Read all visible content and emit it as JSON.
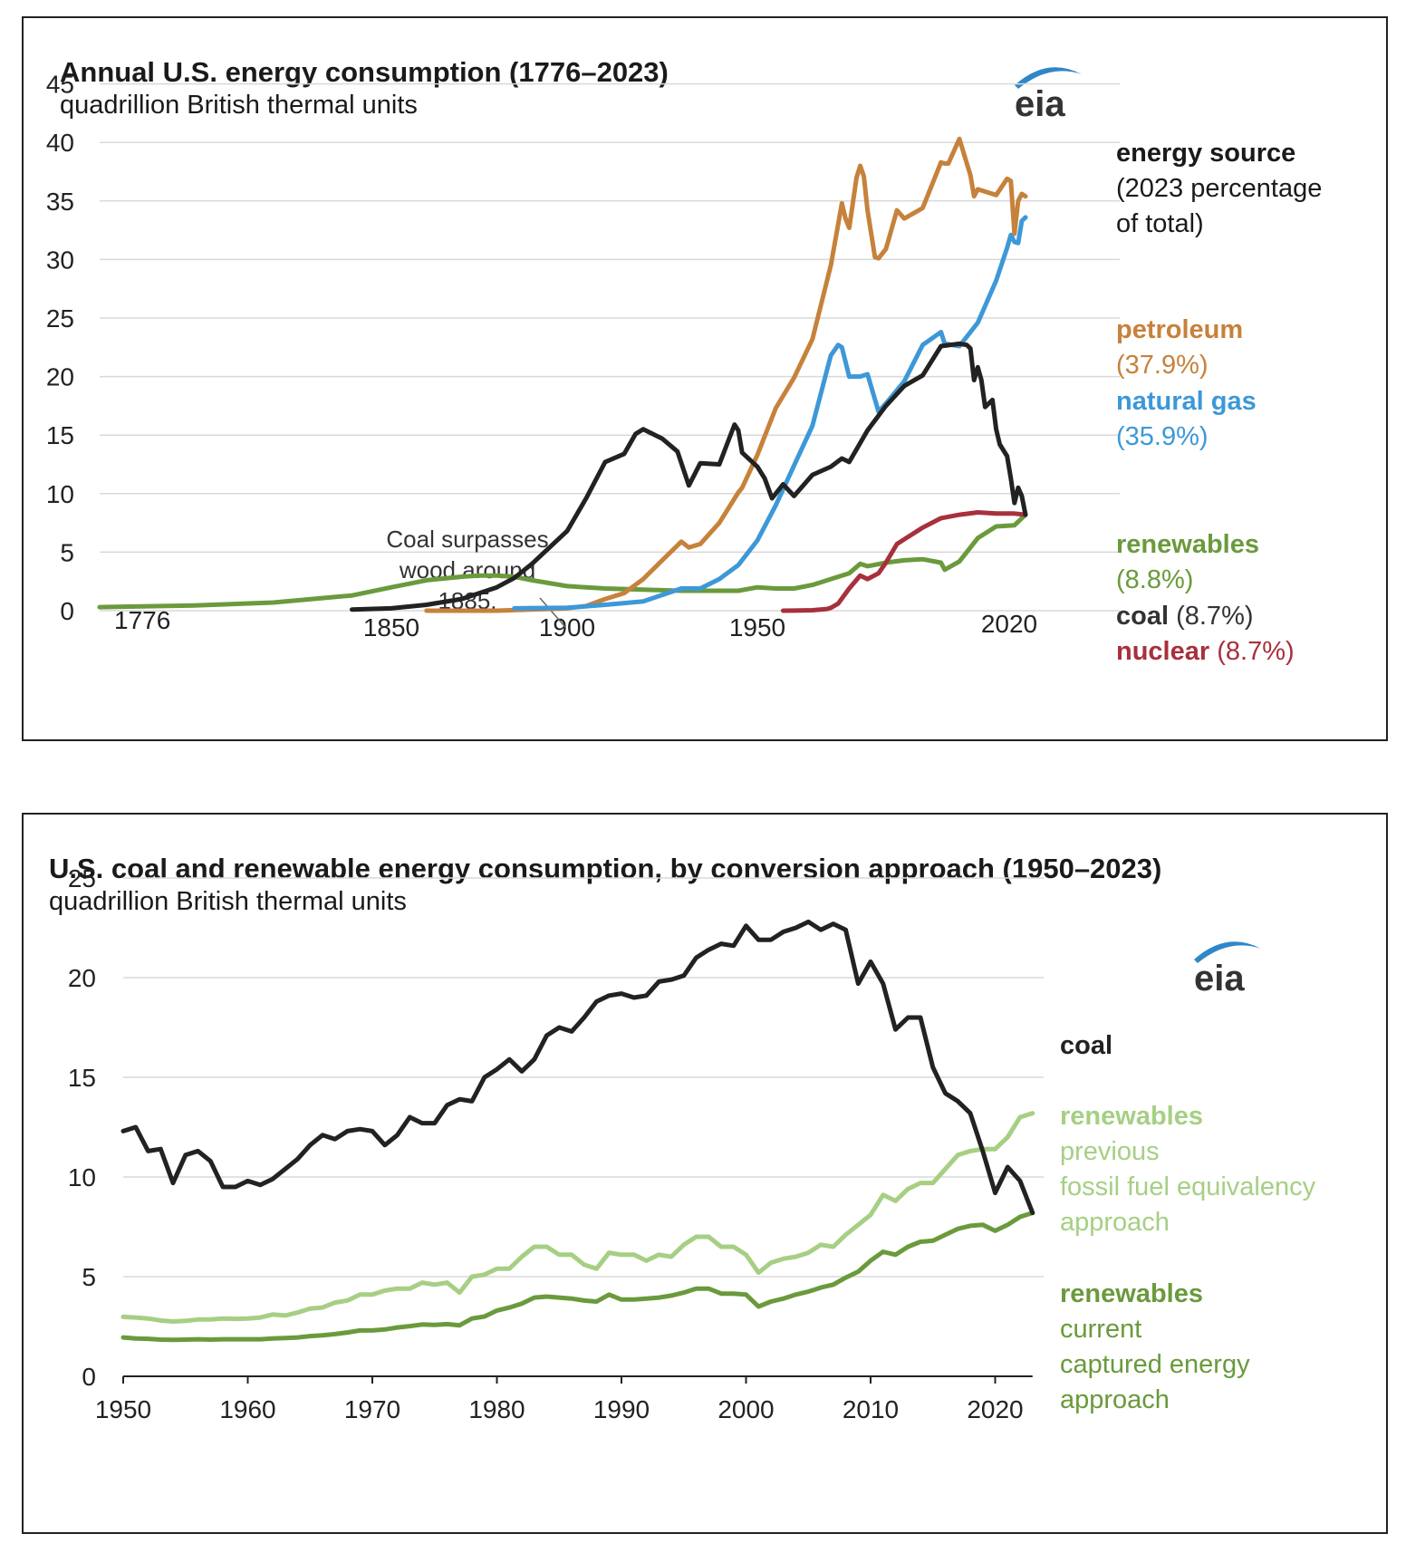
{
  "colors": {
    "petroleum": "#c6823b",
    "natural_gas": "#3d98d8",
    "coal": "#222222",
    "renewables": "#6a9a3c",
    "nuclear": "#a8303c",
    "renewables_light": "#a6cf84",
    "grid": "#d9d9d9"
  },
  "chart_data": [
    {
      "type": "line",
      "title": "Annual U.S. energy consumption (1776–2023)",
      "subtitle": "quadrillion British thermal units",
      "logo": "eia",
      "ylim": [
        0,
        45
      ],
      "yticks": [
        "0",
        "5",
        "10",
        "15",
        "20",
        "25",
        "30",
        "35",
        "40",
        "45"
      ],
      "xlabels": [
        "1776",
        "1850",
        "1900",
        "1950",
        "2020"
      ],
      "legend_title": "energy source",
      "legend_subtitle": [
        "(2023 percentage",
        "of total)"
      ],
      "annotation": [
        "Coal surpasses",
        "wood around",
        "1885."
      ],
      "series": [
        {
          "name": "petroleum",
          "label": "petroleum",
          "pct": "(37.9%)",
          "x": [
            1860,
            1880,
            1900,
            1905,
            1910,
            1915,
            1920,
            1925,
            1930,
            1932,
            1935,
            1940,
            1945,
            1946,
            1950,
            1955,
            1960,
            1965,
            1970,
            1972,
            1973,
            1974,
            1975,
            1977,
            1978,
            1979,
            1980,
            1982,
            1983,
            1985,
            1988,
            1990,
            1995,
            2000,
            2001,
            2002,
            2005,
            2008,
            2009,
            2010,
            2015,
            2018,
            2019,
            2020,
            2021,
            2022,
            2023
          ],
          "y": [
            0,
            0,
            0.2,
            0.4,
            1,
            1.5,
            2.7,
            4.3,
            5.9,
            5.4,
            5.7,
            7.5,
            10.1,
            10.5,
            13.3,
            17.3,
            19.9,
            23.2,
            29.5,
            33,
            34.8,
            33.5,
            32.7,
            37,
            38,
            37.1,
            34.2,
            30.2,
            30.1,
            30.9,
            34.2,
            33.5,
            34.4,
            38.3,
            38.2,
            38.2,
            40.3,
            37.2,
            35.4,
            36,
            35.5,
            36.9,
            36.7,
            32.2,
            35,
            35.6,
            35.4
          ]
        },
        {
          "name": "natural_gas",
          "label": "natural gas",
          "pct": "(35.9%)",
          "x": [
            1885,
            1900,
            1910,
            1920,
            1930,
            1935,
            1940,
            1945,
            1950,
            1955,
            1960,
            1965,
            1970,
            1972,
            1973,
            1975,
            1978,
            1980,
            1983,
            1985,
            1990,
            1995,
            2000,
            2001,
            2005,
            2008,
            2010,
            2015,
            2018,
            2019,
            2020,
            2021,
            2022,
            2023
          ],
          "y": [
            0.2,
            0.25,
            0.5,
            0.8,
            1.9,
            1.9,
            2.7,
            3.9,
            6,
            9,
            12.4,
            15.8,
            21.8,
            22.7,
            22.5,
            20,
            20,
            20.2,
            17,
            17.7,
            19.6,
            22.7,
            23.8,
            22.8,
            22.6,
            23.8,
            24.6,
            28.2,
            31,
            32.1,
            31.5,
            31.4,
            33.3,
            33.6
          ]
        },
        {
          "name": "coal",
          "label": "coal",
          "pct": "(8.7%)",
          "x": [
            1840,
            1850,
            1860,
            1870,
            1880,
            1885,
            1890,
            1900,
            1905,
            1910,
            1915,
            1918,
            1920,
            1925,
            1929,
            1932,
            1935,
            1940,
            1944,
            1945,
            1946,
            1950,
            1952,
            1954,
            1957,
            1960,
            1965,
            1970,
            1973,
            1975,
            1980,
            1985,
            1990,
            1995,
            2000,
            2005,
            2007,
            2008,
            2009,
            2010,
            2011,
            2012,
            2014,
            2015,
            2016,
            2018,
            2019,
            2020,
            2021,
            2022,
            2023
          ],
          "y": [
            0.1,
            0.2,
            0.5,
            1,
            2,
            2.8,
            4,
            6.8,
            9.6,
            12.7,
            13.4,
            15.1,
            15.5,
            14.7,
            13.6,
            10.7,
            12.6,
            12.5,
            15.9,
            15.4,
            13.5,
            12.3,
            11.3,
            9.6,
            10.8,
            9.8,
            11.6,
            12.3,
            13,
            12.7,
            15.4,
            17.5,
            19.2,
            20.1,
            22.6,
            22.8,
            22.7,
            22.4,
            19.7,
            20.8,
            19.7,
            17.4,
            18,
            15.5,
            14.2,
            13.2,
            11.3,
            9.2,
            10.5,
            9.8,
            8.2
          ]
        },
        {
          "name": "renewables",
          "label": "renewables",
          "pct": "(8.8%)",
          "x": [
            1776,
            1800,
            1820,
            1840,
            1850,
            1860,
            1870,
            1875,
            1880,
            1885,
            1890,
            1900,
            1910,
            1920,
            1930,
            1940,
            1945,
            1950,
            1955,
            1960,
            1965,
            1970,
            1975,
            1978,
            1980,
            1985,
            1990,
            1995,
            2000,
            2001,
            2005,
            2010,
            2015,
            2020,
            2023
          ],
          "y": [
            0.3,
            0.45,
            0.7,
            1.3,
            2,
            2.6,
            2.9,
            3.0,
            3.0,
            2.9,
            2.6,
            2.1,
            1.9,
            1.8,
            1.7,
            1.7,
            1.7,
            2,
            1.9,
            1.9,
            2.2,
            2.7,
            3.2,
            4,
            3.8,
            4.1,
            4.3,
            4.4,
            4.1,
            3.5,
            4.2,
            6.2,
            7.2,
            7.3,
            8.2
          ]
        },
        {
          "name": "nuclear",
          "label": "nuclear",
          "pct": "(8.7%)",
          "x": [
            1957,
            1960,
            1965,
            1969,
            1970,
            1972,
            1975,
            1978,
            1980,
            1983,
            1985,
            1988,
            1990,
            1995,
            2000,
            2005,
            2010,
            2015,
            2020,
            2023
          ],
          "y": [
            0,
            0.01,
            0.04,
            0.15,
            0.24,
            0.6,
            1.9,
            3,
            2.7,
            3.2,
            4.1,
            5.7,
            6.1,
            7.1,
            7.9,
            8.2,
            8.4,
            8.3,
            8.3,
            8.2
          ]
        }
      ]
    },
    {
      "type": "line",
      "title": "U.S. coal and renewable energy consumption, by conversion approach (1950–2023)",
      "subtitle": "quadrillion British thermal units",
      "logo": "eia",
      "xlim": [
        1950,
        2023
      ],
      "ylim": [
        0,
        25
      ],
      "yticks": [
        "0",
        "5",
        "10",
        "15",
        "20",
        "25"
      ],
      "xticks": [
        "1950",
        "1960",
        "1970",
        "1980",
        "1990",
        "2000",
        "2010",
        "2020"
      ],
      "series": [
        {
          "name": "coal",
          "label": "coal",
          "sublabel": [],
          "x": [
            1950,
            1951,
            1952,
            1953,
            1954,
            1955,
            1956,
            1957,
            1958,
            1959,
            1960,
            1961,
            1962,
            1963,
            1964,
            1965,
            1966,
            1967,
            1968,
            1969,
            1970,
            1971,
            1972,
            1973,
            1974,
            1975,
            1976,
            1977,
            1978,
            1979,
            1980,
            1981,
            1982,
            1983,
            1984,
            1985,
            1986,
            1987,
            1988,
            1989,
            1990,
            1991,
            1992,
            1993,
            1994,
            1995,
            1996,
            1997,
            1998,
            1999,
            2000,
            2001,
            2002,
            2003,
            2004,
            2005,
            2006,
            2007,
            2008,
            2009,
            2010,
            2011,
            2012,
            2013,
            2014,
            2015,
            2016,
            2017,
            2018,
            2019,
            2020,
            2021,
            2022,
            2023
          ],
          "y": [
            12.3,
            12.5,
            11.3,
            11.4,
            9.7,
            11.1,
            11.3,
            10.8,
            9.5,
            9.5,
            9.8,
            9.6,
            9.9,
            10.4,
            10.9,
            11.6,
            12.1,
            11.9,
            12.3,
            12.4,
            12.3,
            11.6,
            12.1,
            13,
            12.7,
            12.7,
            13.6,
            13.9,
            13.8,
            15,
            15.4,
            15.9,
            15.3,
            15.9,
            17.1,
            17.5,
            17.3,
            18,
            18.8,
            19.1,
            19.2,
            19,
            19.1,
            19.8,
            19.9,
            20.1,
            21,
            21.4,
            21.7,
            21.6,
            22.6,
            21.9,
            21.9,
            22.3,
            22.5,
            22.8,
            22.4,
            22.7,
            22.4,
            19.7,
            20.8,
            19.7,
            17.4,
            18,
            18,
            15.5,
            14.2,
            13.8,
            13.2,
            11.3,
            9.2,
            10.5,
            9.8,
            8.2
          ]
        },
        {
          "name": "renewables_light",
          "label": "renewables",
          "sublabel": [
            "previous",
            "fossil fuel equivalency",
            "approach"
          ],
          "x": [
            1950,
            1951,
            1952,
            1953,
            1954,
            1955,
            1956,
            1957,
            1958,
            1959,
            1960,
            1961,
            1962,
            1963,
            1964,
            1965,
            1966,
            1967,
            1968,
            1969,
            1970,
            1971,
            1972,
            1973,
            1974,
            1975,
            1976,
            1977,
            1978,
            1979,
            1980,
            1981,
            1982,
            1983,
            1984,
            1985,
            1986,
            1987,
            1988,
            1989,
            1990,
            1991,
            1992,
            1993,
            1994,
            1995,
            1996,
            1997,
            1998,
            1999,
            2000,
            2001,
            2002,
            2003,
            2004,
            2005,
            2006,
            2007,
            2008,
            2009,
            2010,
            2011,
            2012,
            2013,
            2014,
            2015,
            2016,
            2017,
            2018,
            2019,
            2020,
            2021,
            2022,
            2023
          ],
          "y": [
            2.98,
            2.95,
            2.9,
            2.8,
            2.75,
            2.78,
            2.85,
            2.85,
            2.9,
            2.88,
            2.9,
            2.95,
            3.1,
            3.05,
            3.2,
            3.4,
            3.45,
            3.7,
            3.8,
            4.1,
            4.1,
            4.3,
            4.4,
            4.4,
            4.7,
            4.6,
            4.7,
            4.2,
            5,
            5.1,
            5.4,
            5.4,
            6,
            6.5,
            6.5,
            6.1,
            6.1,
            5.6,
            5.4,
            6.2,
            6.1,
            6.1,
            5.8,
            6.1,
            6,
            6.6,
            7,
            7,
            6.5,
            6.5,
            6.1,
            5.2,
            5.7,
            5.9,
            6,
            6.2,
            6.6,
            6.5,
            7.1,
            7.6,
            8.1,
            9.1,
            8.8,
            9.4,
            9.7,
            9.7,
            10.4,
            11.1,
            11.3,
            11.4,
            11.4,
            12,
            13,
            13.2
          ]
        },
        {
          "name": "renewables",
          "label": "renewables",
          "sublabel": [
            "current",
            "captured energy",
            "approach"
          ],
          "x": [
            1950,
            1951,
            1952,
            1953,
            1954,
            1955,
            1956,
            1957,
            1958,
            1959,
            1960,
            1961,
            1962,
            1963,
            1964,
            1965,
            1966,
            1967,
            1968,
            1969,
            1970,
            1971,
            1972,
            1973,
            1974,
            1975,
            1976,
            1977,
            1978,
            1979,
            1980,
            1981,
            1982,
            1983,
            1984,
            1985,
            1986,
            1987,
            1988,
            1989,
            1990,
            1991,
            1992,
            1993,
            1994,
            1995,
            1996,
            1997,
            1998,
            1999,
            2000,
            2001,
            2002,
            2003,
            2004,
            2005,
            2006,
            2007,
            2008,
            2009,
            2010,
            2011,
            2012,
            2013,
            2014,
            2015,
            2016,
            2017,
            2018,
            2019,
            2020,
            2021,
            2022,
            2023
          ],
          "y": [
            1.95,
            1.9,
            1.88,
            1.84,
            1.83,
            1.84,
            1.86,
            1.84,
            1.86,
            1.86,
            1.86,
            1.86,
            1.9,
            1.92,
            1.95,
            2.02,
            2.06,
            2.12,
            2.2,
            2.3,
            2.3,
            2.35,
            2.45,
            2.52,
            2.6,
            2.58,
            2.62,
            2.56,
            2.9,
            3,
            3.3,
            3.45,
            3.65,
            3.95,
            4,
            3.95,
            3.9,
            3.8,
            3.75,
            4.1,
            3.85,
            3.85,
            3.9,
            3.95,
            4.05,
            4.2,
            4.4,
            4.4,
            4.15,
            4.15,
            4.1,
            3.5,
            3.75,
            3.9,
            4.1,
            4.25,
            4.45,
            4.6,
            4.95,
            5.25,
            5.8,
            6.25,
            6.1,
            6.5,
            6.75,
            6.8,
            7.1,
            7.4,
            7.55,
            7.6,
            7.3,
            7.6,
            8,
            8.2
          ]
        }
      ]
    }
  ]
}
